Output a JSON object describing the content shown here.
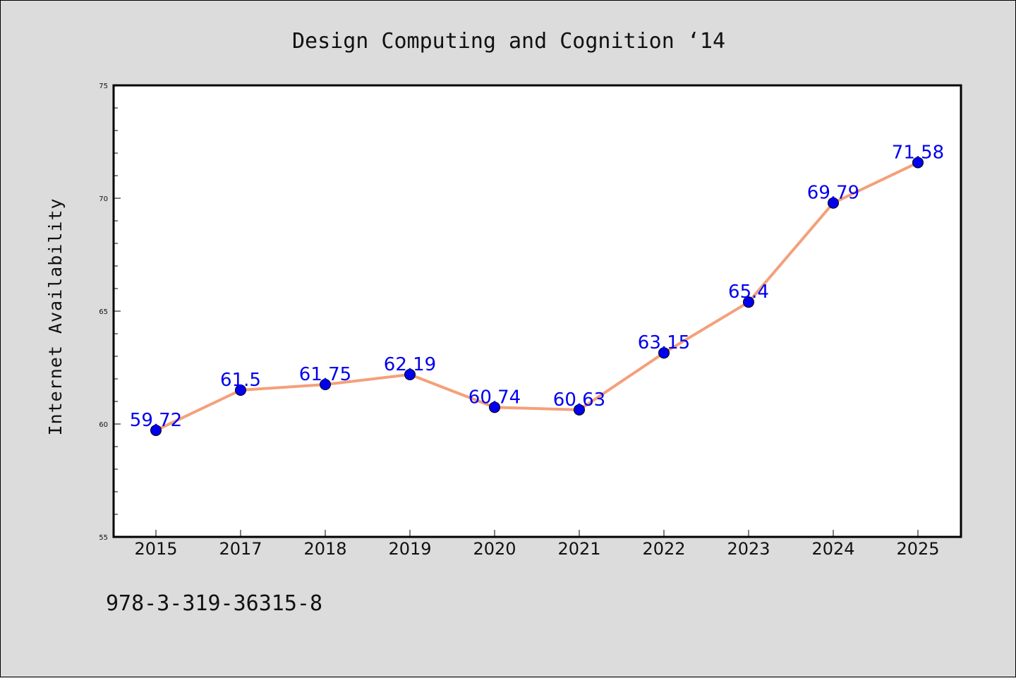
{
  "figure": {
    "title": "Design Computing and Cognition ‘14",
    "footer_text": "978-3-319-36315-8"
  },
  "chart_data": {
    "type": "line",
    "title": "Design Computing and Cognition ‘14",
    "xlabel": "",
    "ylabel": "Internet Availability",
    "categories": [
      "2015",
      "2017",
      "2018",
      "2019",
      "2020",
      "2021",
      "2022",
      "2023",
      "2024",
      "2025"
    ],
    "series": [
      {
        "values": [
          59.72,
          61.5,
          61.75,
          62.19,
          60.74,
          60.63,
          63.15,
          65.4,
          69.79,
          71.58
        ],
        "data_labels": [
          "59.72",
          "61.5",
          "61.75",
          "62.19",
          "60.74",
          "60.63",
          "63.15",
          "65.4",
          "69.79",
          "71.58"
        ],
        "line_color": "#f4a07a",
        "marker_color": "#0000ee"
      }
    ],
    "ylim": [
      55,
      75
    ],
    "yticks": [
      "55",
      "60",
      "65",
      "70",
      "75"
    ],
    "grid": false,
    "legend": "none"
  }
}
